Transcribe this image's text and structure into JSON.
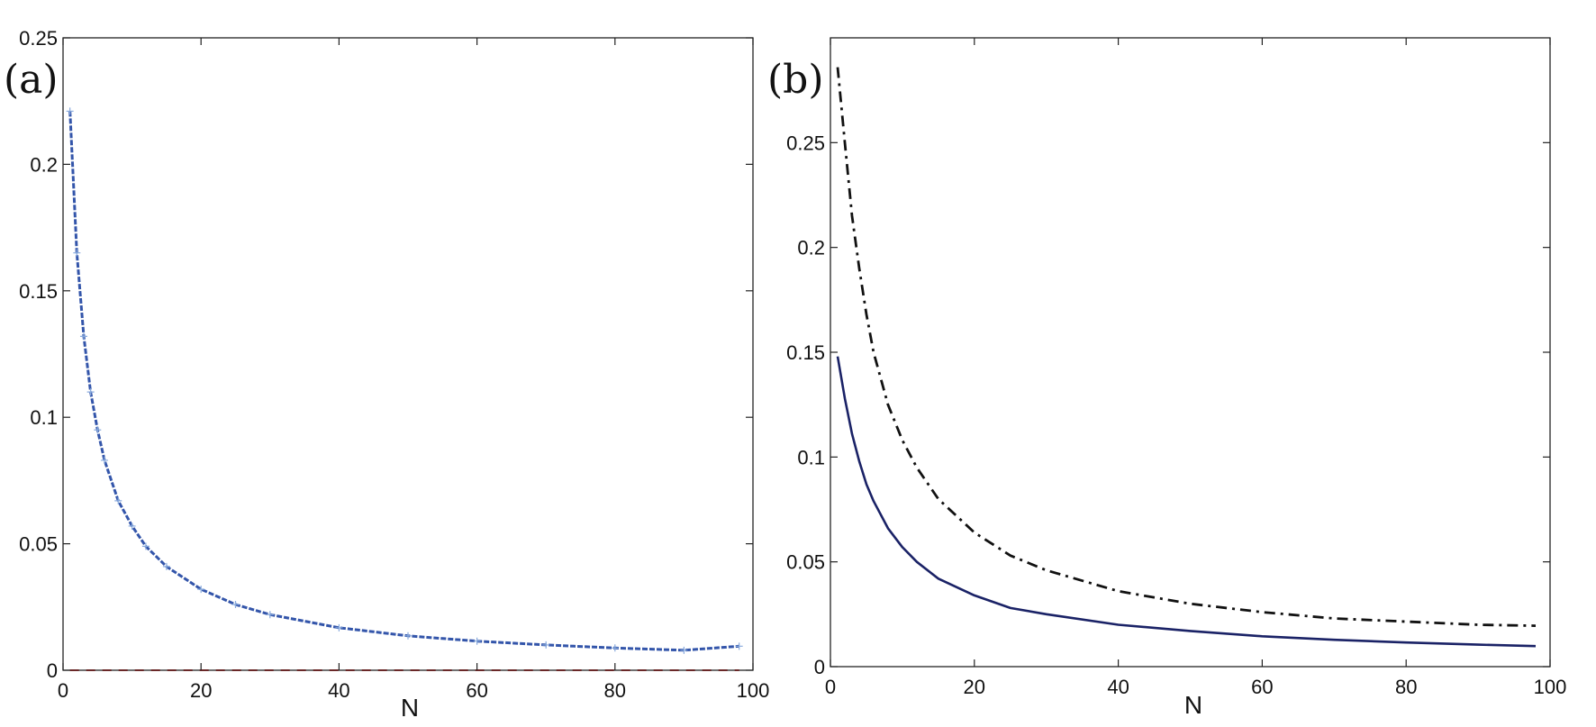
{
  "chart_data": [
    {
      "type": "line",
      "panel_label": "(a)",
      "xlabel": "N",
      "ylabel": "",
      "xlim": [
        0,
        100
      ],
      "ylim": [
        0,
        0.25
      ],
      "xticks": [
        "0",
        "20",
        "40",
        "60",
        "80",
        "100"
      ],
      "yticks": [
        "0",
        "0.05",
        "0.1",
        "0.15",
        "0.2",
        "0.25"
      ],
      "grid": false,
      "series": [
        {
          "color": "#3355aa",
          "style": "dashed-with-markers",
          "x": [
            1,
            2,
            3,
            4,
            5,
            6,
            8,
            10,
            12,
            15,
            20,
            25,
            30,
            40,
            50,
            60,
            70,
            80,
            90,
            98
          ],
          "values": [
            0.221,
            0.165,
            0.132,
            0.11,
            0.095,
            0.083,
            0.067,
            0.057,
            0.049,
            0.041,
            0.032,
            0.026,
            0.022,
            0.0168,
            0.0136,
            0.0115,
            0.01,
            0.0088,
            0.0079,
            0.0095
          ]
        },
        {
          "color": "#ee3333",
          "style": "dashed",
          "x": [
            1,
            98
          ],
          "values": [
            0,
            0
          ]
        }
      ]
    },
    {
      "type": "line",
      "panel_label": "(b)",
      "xlabel": "N",
      "ylabel": "",
      "xlim": [
        0,
        100
      ],
      "ylim": [
        0,
        0.3
      ],
      "xticks": [
        "0",
        "20",
        "40",
        "60",
        "80",
        "100"
      ],
      "yticks": [
        "0",
        "0.05",
        "0.1",
        "0.15",
        "0.2",
        "0.25"
      ],
      "grid": false,
      "series": [
        {
          "color": "#111111",
          "style": "dashdot",
          "x": [
            1,
            2,
            3,
            4,
            5,
            6,
            8,
            10,
            12,
            15,
            20,
            25,
            30,
            40,
            50,
            60,
            70,
            80,
            90,
            98
          ],
          "values": [
            0.286,
            0.25,
            0.215,
            0.19,
            0.168,
            0.15,
            0.125,
            0.108,
            0.095,
            0.08,
            0.064,
            0.053,
            0.046,
            0.036,
            0.03,
            0.026,
            0.023,
            0.0215,
            0.02,
            0.0195
          ]
        },
        {
          "color": "#1a2266",
          "style": "solid",
          "x": [
            1,
            2,
            3,
            4,
            5,
            6,
            8,
            10,
            12,
            15,
            20,
            25,
            30,
            40,
            50,
            60,
            70,
            80,
            90,
            98
          ],
          "values": [
            0.148,
            0.128,
            0.111,
            0.098,
            0.087,
            0.079,
            0.066,
            0.057,
            0.05,
            0.042,
            0.034,
            0.028,
            0.025,
            0.02,
            0.017,
            0.0145,
            0.0128,
            0.0115,
            0.0105,
            0.0098
          ]
        }
      ]
    }
  ]
}
